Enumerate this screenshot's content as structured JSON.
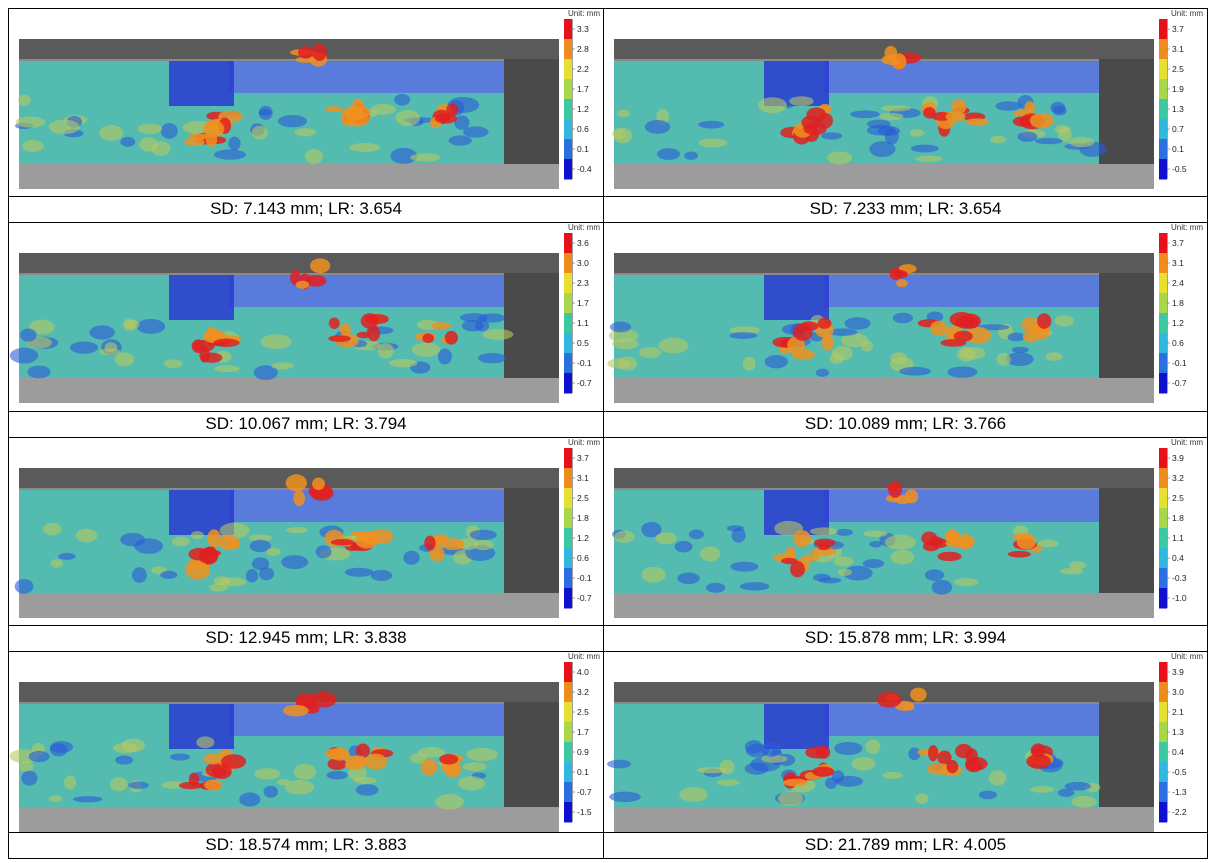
{
  "panels": [
    {
      "unit": "Unit: mm",
      "ticks": [
        "3.3",
        "2.8",
        "2.2",
        "1.7",
        "1.2",
        "0.6",
        "0.1",
        "-0.4"
      ],
      "caption": "SD: 7.143 mm; LR: 3.654"
    },
    {
      "unit": "Unit: mm",
      "ticks": [
        "3.7",
        "3.1",
        "2.5",
        "1.9",
        "1.3",
        "0.7",
        "0.1",
        "-0.5"
      ],
      "caption": "SD: 7.233 mm; LR: 3.654"
    },
    {
      "unit": "Unit: mm",
      "ticks": [
        "3.6",
        "3.0",
        "2.3",
        "1.7",
        "1.1",
        "0.5",
        "-0.1",
        "-0.7"
      ],
      "caption": "SD: 10.067 mm; LR: 3.794"
    },
    {
      "unit": "Unit: mm",
      "ticks": [
        "3.7",
        "3.1",
        "2.4",
        "1.8",
        "1.2",
        "0.6",
        "-0.1",
        "-0.7"
      ],
      "caption": "SD: 10.089 mm; LR: 3.766"
    },
    {
      "unit": "Unit: mm",
      "ticks": [
        "3.7",
        "3.1",
        "2.5",
        "1.8",
        "1.2",
        "0.6",
        "-0.1",
        "-0.7"
      ],
      "caption": "SD: 12.945 mm; LR: 3.838"
    },
    {
      "unit": "Unit: mm",
      "ticks": [
        "3.9",
        "3.2",
        "2.5",
        "1.8",
        "1.1",
        "0.4",
        "-0.3",
        "-1.0"
      ],
      "caption": "SD: 15.878 mm; LR: 3.994"
    },
    {
      "unit": "Unit: mm",
      "ticks": [
        "4.0",
        "3.2",
        "2.5",
        "1.7",
        "0.9",
        "0.1",
        "-0.7",
        "-1.5"
      ],
      "caption": "SD: 18.574 mm; LR: 3.883"
    },
    {
      "unit": "Unit: mm",
      "ticks": [
        "3.9",
        "3.0",
        "2.1",
        "1.3",
        "0.4",
        "-0.5",
        "-1.3",
        "-2.2"
      ],
      "caption": "SD: 21.789 mm; LR: 4.005"
    }
  ]
}
